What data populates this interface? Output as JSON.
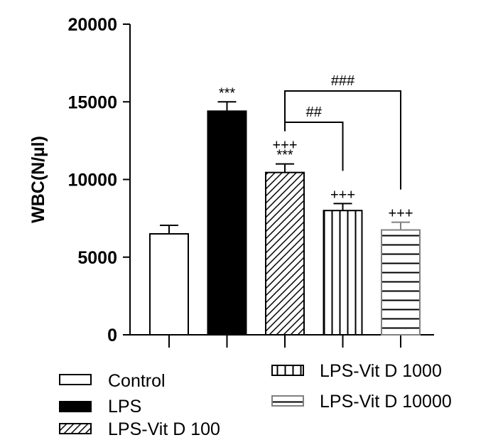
{
  "chart_data": {
    "type": "bar",
    "ylabel": "WBC(N/µl)",
    "xlabel": "",
    "ylim": [
      0,
      20000
    ],
    "yticks": [
      0,
      5000,
      10000,
      15000,
      20000
    ],
    "ytick_labels": [
      "0",
      "5000",
      "10000",
      "15000",
      "20000"
    ],
    "categories": [
      "Control",
      "LPS",
      "LPS-Vit D 100",
      "LPS-Vit D 1000",
      "LPS-Vit D 10000"
    ],
    "values": [
      6500,
      14400,
      10450,
      8000,
      6750
    ],
    "errors": [
      550,
      600,
      550,
      450,
      500
    ],
    "patterns": [
      "none",
      "solid",
      "diagonal",
      "vertical",
      "horizontal"
    ],
    "bar_colors": [
      "#000000",
      "#000000",
      "#000000",
      "#000000",
      "#808080"
    ],
    "significance_marks": [
      {
        "bar": 1,
        "lines": [
          "***"
        ]
      },
      {
        "bar": 2,
        "lines": [
          "+++",
          "***"
        ]
      },
      {
        "bar": 3,
        "lines": [
          "+++"
        ]
      },
      {
        "bar": 4,
        "lines": [
          "+++"
        ]
      }
    ],
    "brackets": [
      {
        "from": 2,
        "to": 3,
        "label": "##"
      },
      {
        "from": 2,
        "to": 4,
        "label": "###"
      }
    ],
    "legend": [
      "Control",
      "LPS",
      "LPS-Vit D 100",
      "LPS-Vit D 1000",
      "LPS-Vit D 10000"
    ]
  }
}
